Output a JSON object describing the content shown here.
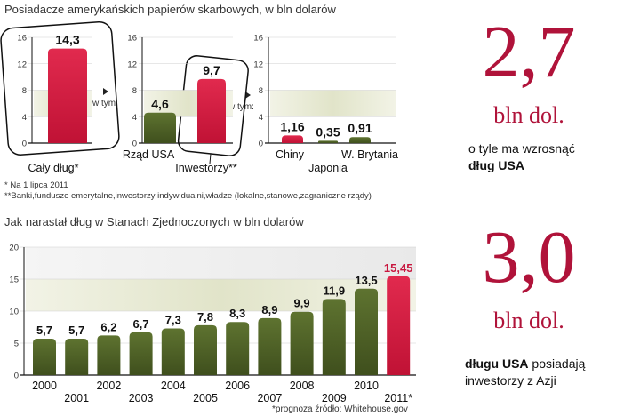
{
  "colors": {
    "red": "#c8163e",
    "green": "#4f6327",
    "band": "#e3e6cf",
    "accent": "#b0133a"
  },
  "top": {
    "title": "Posiadacze amerykańskich papierów skarbowych, w bln dolarów",
    "arrow_label": "w tym:",
    "note1": "* Na 1 lipca 2011",
    "note2": "**Banki,fundusze emerytalne,inwestorzy indywidualni,władze (lokalne,stanowe,zagraniczne rządy)"
  },
  "bottom": {
    "title": "Jak narastał dług w Stanach Zjednoczonych w bln dolarów",
    "source": "*prognoza  źródło: Whitehouse.gov"
  },
  "side1": {
    "number": "2,7",
    "unit": "bln dol.",
    "line1": "o tyle ma wzrosnąć",
    "line2": "dług USA"
  },
  "side2": {
    "number": "3,0",
    "unit": "bln dol.",
    "line1_bold": "długu USA",
    "line1_rest": " posiadają",
    "line2": "inwestorzy z Azji"
  },
  "chart_data": [
    {
      "type": "bar",
      "title": "Posiadacze amerykańskich papierów skarbowych, w bln dolarów",
      "categories": [
        "Cały dług*"
      ],
      "values": [
        14.3
      ],
      "value_labels": [
        "14,3"
      ],
      "colors": [
        "red"
      ],
      "ylim": [
        0,
        16
      ],
      "yticks": [
        0,
        4,
        8,
        12,
        16
      ]
    },
    {
      "type": "bar",
      "categories": [
        "Rząd USA",
        "Inwestorzy**"
      ],
      "values": [
        4.6,
        9.7
      ],
      "value_labels": [
        "4,6",
        "9,7"
      ],
      "colors": [
        "green",
        "red"
      ],
      "ylim": [
        0,
        16
      ],
      "yticks": [
        0,
        4,
        8,
        12,
        16
      ]
    },
    {
      "type": "bar",
      "categories": [
        "Chiny",
        "Japonia",
        "W. Brytania"
      ],
      "values": [
        1.16,
        0.35,
        0.91
      ],
      "value_labels": [
        "1,16",
        "0,35",
        "0,91"
      ],
      "colors": [
        "red",
        "green",
        "green"
      ],
      "ylim": [
        0,
        16
      ],
      "yticks": [
        0,
        4,
        8,
        12,
        16
      ]
    },
    {
      "type": "bar",
      "title": "Jak narastał dług w Stanach Zjednoczonych w bln dolarów",
      "categories": [
        "2000",
        "2001",
        "2002",
        "2003",
        "2004",
        "2005",
        "2006",
        "2007",
        "2008",
        "2009",
        "2010",
        "2011*"
      ],
      "values": [
        5.7,
        5.7,
        6.2,
        6.7,
        7.3,
        7.8,
        8.3,
        8.9,
        9.9,
        11.9,
        13.5,
        15.45
      ],
      "value_labels": [
        "5,7",
        "5,7",
        "6,2",
        "6,7",
        "7,3",
        "7,8",
        "8,3",
        "8,9",
        "9,9",
        "11,9",
        "13,5",
        "15,45"
      ],
      "ylim": [
        0,
        20
      ],
      "yticks": [
        0,
        5,
        10,
        15,
        20
      ]
    }
  ]
}
